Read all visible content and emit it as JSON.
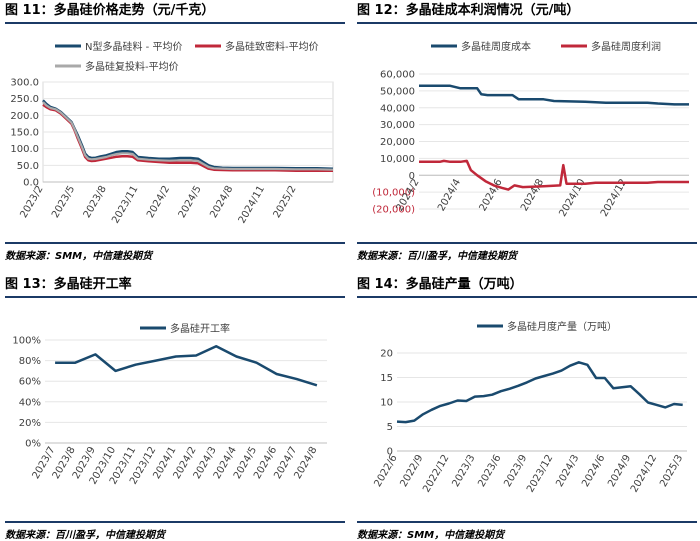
{
  "panels": [
    {
      "title": "图 11：多晶硅价格走势（元/千克）",
      "source": "数据来源：SMM，中信建投期货"
    },
    {
      "title": "图 12：多晶硅成本利润情况（元/吨）",
      "source": "数据来源：百川盈孚，中信建投期货"
    },
    {
      "title": "图 13：多晶硅开工率",
      "source": "数据来源：百川盈孚，中信建投期货"
    },
    {
      "title": "图 14：多晶硅产量（万吨）",
      "source": "数据来源：SMM，中信建投期货"
    }
  ],
  "chart_data": [
    {
      "type": "line",
      "ylim": [
        0,
        300
      ],
      "yticks": [
        "0.0",
        "50.0",
        "100.0",
        "150.0",
        "200.0",
        "250.0",
        "300.0"
      ],
      "x_ticks": [
        "2023/2",
        "2023/5",
        "2023/8",
        "2023/11",
        "2024/2",
        "2024/5",
        "2024/8",
        "2024/11",
        "2025/2"
      ],
      "x_range": [
        0,
        27.5
      ],
      "series": [
        {
          "name": "N型多晶硅料 - 平均价",
          "color": "#1a4a6e",
          "points": [
            [
              0,
              245
            ],
            [
              0.3,
              235
            ],
            [
              0.7,
              225
            ],
            [
              1.2,
              220
            ],
            [
              1.7,
              210
            ],
            [
              2.2,
              195
            ],
            [
              2.7,
              180
            ],
            [
              3.0,
              160
            ],
            [
              3.3,
              140
            ],
            [
              3.7,
              110
            ],
            [
              4.0,
              85
            ],
            [
              4.3,
              75
            ],
            [
              4.6,
              72
            ],
            [
              5.0,
              73
            ],
            [
              5.5,
              77
            ],
            [
              6.0,
              80
            ],
            [
              6.5,
              85
            ],
            [
              7.0,
              90
            ],
            [
              7.5,
              92
            ],
            [
              8.0,
              92
            ],
            [
              8.5,
              90
            ],
            [
              9.0,
              75
            ],
            [
              10,
              72
            ],
            [
              11,
              70
            ],
            [
              12,
              70
            ],
            [
              13,
              72
            ],
            [
              14,
              72
            ],
            [
              14.7,
              70
            ],
            [
              15.2,
              60
            ],
            [
              15.7,
              50
            ],
            [
              16.2,
              45
            ],
            [
              17,
              43
            ],
            [
              18,
              42
            ],
            [
              20,
              42
            ],
            [
              22,
              42
            ],
            [
              24,
              41
            ],
            [
              26,
              41
            ],
            [
              27.5,
              40
            ]
          ]
        },
        {
          "name": "多晶硅致密料-平均价",
          "color": "#c0283a",
          "points": [
            [
              0,
              232
            ],
            [
              0.3,
              225
            ],
            [
              0.7,
              218
            ],
            [
              1.2,
              215
            ],
            [
              1.7,
              205
            ],
            [
              2.2,
              190
            ],
            [
              2.7,
              175
            ],
            [
              3.0,
              155
            ],
            [
              3.3,
              130
            ],
            [
              3.7,
              100
            ],
            [
              4.0,
              75
            ],
            [
              4.3,
              65
            ],
            [
              4.6,
              63
            ],
            [
              5.0,
              64
            ],
            [
              5.5,
              67
            ],
            [
              6.0,
              70
            ],
            [
              6.5,
              73
            ],
            [
              7.0,
              76
            ],
            [
              7.5,
              77
            ],
            [
              8.0,
              77
            ],
            [
              8.5,
              76
            ],
            [
              9.0,
              65
            ],
            [
              10,
              62
            ],
            [
              11,
              60
            ],
            [
              12,
              58
            ],
            [
              13,
              58
            ],
            [
              14,
              58
            ],
            [
              14.7,
              56
            ],
            [
              15.2,
              48
            ],
            [
              15.7,
              40
            ],
            [
              16.2,
              37
            ],
            [
              17,
              36
            ],
            [
              18,
              35
            ],
            [
              20,
              35
            ],
            [
              22,
              35
            ],
            [
              24,
              34
            ],
            [
              26,
              34
            ],
            [
              27.5,
              34
            ]
          ]
        },
        {
          "name": "多晶硅复投料-平均价",
          "color": "#a9a9a9",
          "points": [
            [
              0,
              240
            ],
            [
              0.3,
              230
            ],
            [
              0.7,
              222
            ],
            [
              1.2,
              218
            ],
            [
              1.7,
              208
            ],
            [
              2.2,
              193
            ],
            [
              2.7,
              178
            ],
            [
              3.0,
              158
            ],
            [
              3.3,
              135
            ],
            [
              3.7,
              105
            ],
            [
              4.0,
              80
            ],
            [
              4.3,
              70
            ],
            [
              4.6,
              68
            ],
            [
              5.0,
              69
            ],
            [
              5.5,
              72
            ],
            [
              6.0,
              75
            ],
            [
              6.5,
              80
            ],
            [
              7.0,
              84
            ],
            [
              7.5,
              86
            ],
            [
              8.0,
              86
            ],
            [
              8.5,
              84
            ],
            [
              9.0,
              70
            ],
            [
              10,
              67
            ],
            [
              11,
              65
            ],
            [
              12,
              64
            ],
            [
              13,
              65
            ],
            [
              14,
              65
            ],
            [
              14.7,
              63
            ],
            [
              15.2,
              54
            ],
            [
              15.7,
              45
            ],
            [
              16.2,
              41
            ],
            [
              17,
              40
            ],
            [
              18,
              39
            ],
            [
              20,
              39
            ],
            [
              22,
              39
            ],
            [
              24,
              38
            ],
            [
              26,
              38
            ],
            [
              27.5,
              37
            ]
          ]
        }
      ]
    },
    {
      "type": "line",
      "ylim": [
        -20000,
        60000
      ],
      "yticks": [
        "(20,000)",
        "(10,000)",
        "0",
        "10,000",
        "20,000",
        "30,000",
        "40,000",
        "50,000",
        "60,000"
      ],
      "x_ticks": [
        "2024/2",
        "2024/4",
        "2024/6",
        "2024/8",
        "2024/10",
        "2024/12"
      ],
      "x_range": [
        0,
        13
      ],
      "series": [
        {
          "name": "多晶硅周度成本",
          "color": "#1a4a6e",
          "points": [
            [
              0,
              53000
            ],
            [
              1.5,
              53000
            ],
            [
              2.0,
              51500
            ],
            [
              2.8,
              51500
            ],
            [
              3.0,
              48000
            ],
            [
              3.3,
              47500
            ],
            [
              4.5,
              47500
            ],
            [
              4.8,
              45000
            ],
            [
              6,
              45000
            ],
            [
              6.5,
              44000
            ],
            [
              8,
              43500
            ],
            [
              9,
              43000
            ],
            [
              11,
              43000
            ],
            [
              11.5,
              42500
            ],
            [
              12.3,
              42000
            ],
            [
              13,
              42000
            ]
          ]
        },
        {
          "name": "多晶硅周度利润",
          "color": "#c0283a",
          "points": [
            [
              0,
              8000
            ],
            [
              1,
              8000
            ],
            [
              1.2,
              8500
            ],
            [
              1.5,
              8000
            ],
            [
              2.0,
              8000
            ],
            [
              2.3,
              8500
            ],
            [
              2.5,
              3000
            ],
            [
              2.8,
              0
            ],
            [
              3.2,
              -3500
            ],
            [
              3.6,
              -6000
            ],
            [
              4.0,
              -7500
            ],
            [
              4.3,
              -8500
            ],
            [
              4.6,
              -6000
            ],
            [
              5.0,
              -7000
            ],
            [
              6.0,
              -6500
            ],
            [
              6.8,
              -6000
            ],
            [
              6.95,
              6000
            ],
            [
              7.1,
              -5000
            ],
            [
              8.0,
              -5000
            ],
            [
              8.5,
              -4500
            ],
            [
              10,
              -4500
            ],
            [
              11,
              -4500
            ],
            [
              11.5,
              -4000
            ],
            [
              12.3,
              -4000
            ],
            [
              13,
              -4000
            ]
          ]
        }
      ]
    },
    {
      "type": "line",
      "ylim": [
        0,
        100
      ],
      "yticks": [
        "0%",
        "20%",
        "40%",
        "60%",
        "80%",
        "100%"
      ],
      "categories": [
        "2023/7",
        "2023/8",
        "2023/9",
        "2023/10",
        "2023/11",
        "2023/12",
        "2024/1",
        "2024/2",
        "2024/3",
        "2024/4",
        "2024/5",
        "2024/6",
        "2024/7",
        "2024/8"
      ],
      "series": [
        {
          "name": "多晶硅开工率",
          "color": "#1a4a6e",
          "values": [
            78,
            78,
            86,
            70,
            76,
            80,
            84,
            85,
            94,
            84,
            78,
            67,
            62,
            56
          ]
        }
      ]
    },
    {
      "type": "line",
      "ylim": [
        0,
        20
      ],
      "yticks": [
        "0",
        "5",
        "10",
        "15",
        "20"
      ],
      "x_ticks": [
        "2022/6",
        "2022/9",
        "2022/12",
        "2023/3",
        "2023/6",
        "2023/9",
        "2023/12",
        "2024/3",
        "2024/6",
        "2024/9",
        "2024/12",
        "2025/3"
      ],
      "x_range": [
        0,
        33.5
      ],
      "series": [
        {
          "name": "多晶硅月度产量（万吨）",
          "color": "#1a4a6e",
          "points": [
            [
              0,
              6.0
            ],
            [
              1,
              5.9
            ],
            [
              2,
              6.2
            ],
            [
              3,
              7.5
            ],
            [
              4,
              8.4
            ],
            [
              5,
              9.2
            ],
            [
              6,
              9.7
            ],
            [
              7,
              10.3
            ],
            [
              8,
              10.2
            ],
            [
              9,
              11.1
            ],
            [
              10,
              11.2
            ],
            [
              11,
              11.5
            ],
            [
              12,
              12.2
            ],
            [
              13,
              12.7
            ],
            [
              14,
              13.3
            ],
            [
              15,
              14.0
            ],
            [
              16,
              14.8
            ],
            [
              17,
              15.3
            ],
            [
              18,
              15.8
            ],
            [
              19,
              16.4
            ],
            [
              20,
              17.4
            ],
            [
              21,
              18.1
            ],
            [
              22,
              17.6
            ],
            [
              23,
              14.9
            ],
            [
              24,
              14.9
            ],
            [
              25,
              12.8
            ],
            [
              26,
              13.0
            ],
            [
              27,
              13.2
            ],
            [
              28,
              11.6
            ],
            [
              29,
              9.9
            ],
            [
              30,
              9.4
            ],
            [
              31,
              8.9
            ],
            [
              32,
              9.6
            ],
            [
              33,
              9.4
            ]
          ]
        }
      ]
    }
  ]
}
